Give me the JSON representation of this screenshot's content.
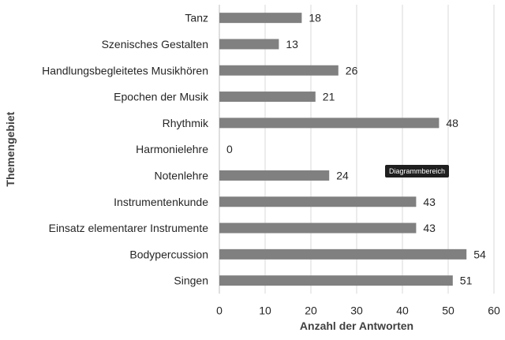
{
  "chart_data": {
    "type": "bar",
    "orientation": "horizontal",
    "categories": [
      "Tanz",
      "Szenisches Gestalten",
      "Handlungsbegleitetes Musikhören",
      "Epochen der Musik",
      "Rhythmik",
      "Harmonielehre",
      "Notenlehre",
      "Instrumentenkunde",
      "Einsatz elementarer Instrumente",
      "Bodypercussion",
      "Singen"
    ],
    "values": [
      18,
      13,
      26,
      21,
      48,
      0,
      24,
      43,
      43,
      54,
      51
    ],
    "xlabel": "Anzahl der Antworten",
    "ylabel": "Themengebiet",
    "xlim": [
      0,
      60
    ],
    "xticks": [
      0,
      10,
      20,
      30,
      40,
      50,
      60
    ],
    "grid": "vertical",
    "bar_color": "#808080",
    "data_labels": true
  },
  "tooltip": {
    "text": "Diagrammbereich"
  }
}
